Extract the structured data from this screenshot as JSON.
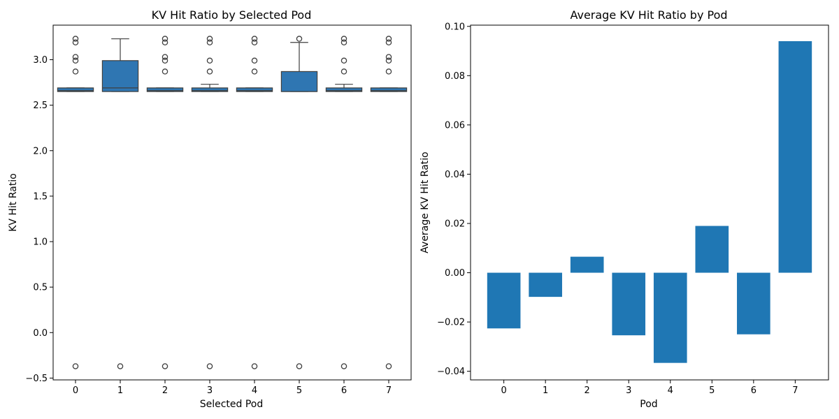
{
  "chart_data": [
    {
      "type": "box",
      "title": "KV Hit Ratio by Selected Pod",
      "xlabel": "Selected Pod",
      "ylabel": "KV Hit Ratio",
      "categories": [
        "0",
        "1",
        "2",
        "3",
        "4",
        "5",
        "6",
        "7"
      ],
      "ylim": [
        -0.52,
        3.38
      ],
      "yticks": [
        -0.5,
        0.0,
        0.5,
        1.0,
        1.5,
        2.0,
        2.5,
        3.0
      ],
      "ytick_labels": [
        "−0.5",
        "0.0",
        "0.5",
        "1.0",
        "1.5",
        "2.0",
        "2.5",
        "3.0"
      ],
      "color": "#2f76b2",
      "boxes": [
        {
          "q1": 2.65,
          "median": 2.66,
          "q3": 2.69,
          "whisker_low": 2.65,
          "whisker_high": 2.69,
          "outliers": [
            3.23,
            3.19,
            3.03,
            2.99,
            2.87,
            -0.37
          ]
        },
        {
          "q1": 2.65,
          "median": 2.69,
          "q3": 2.99,
          "whisker_low": 2.65,
          "whisker_high": 3.23,
          "outliers": [
            -0.37
          ]
        },
        {
          "q1": 2.65,
          "median": 2.66,
          "q3": 2.69,
          "whisker_low": 2.65,
          "whisker_high": 2.69,
          "outliers": [
            3.23,
            3.19,
            3.03,
            2.99,
            2.87,
            -0.37
          ]
        },
        {
          "q1": 2.65,
          "median": 2.66,
          "q3": 2.69,
          "whisker_low": 2.65,
          "whisker_high": 2.73,
          "outliers": [
            3.23,
            3.19,
            2.99,
            2.87,
            -0.37
          ]
        },
        {
          "q1": 2.65,
          "median": 2.66,
          "q3": 2.69,
          "whisker_low": 2.65,
          "whisker_high": 2.69,
          "outliers": [
            3.23,
            3.19,
            2.99,
            2.87,
            -0.37
          ]
        },
        {
          "q1": 2.65,
          "median": 2.65,
          "q3": 2.87,
          "whisker_low": 2.65,
          "whisker_high": 3.19,
          "outliers": [
            3.23,
            -0.37
          ]
        },
        {
          "q1": 2.65,
          "median": 2.66,
          "q3": 2.69,
          "whisker_low": 2.65,
          "whisker_high": 2.73,
          "outliers": [
            3.23,
            3.19,
            2.99,
            2.87,
            -0.37
          ]
        },
        {
          "q1": 2.65,
          "median": 2.66,
          "q3": 2.69,
          "whisker_low": 2.65,
          "whisker_high": 2.69,
          "outliers": [
            3.23,
            3.19,
            3.03,
            2.99,
            2.87,
            -0.37
          ]
        }
      ]
    },
    {
      "type": "bar",
      "title": "Average KV Hit Ratio by Pod",
      "xlabel": "Pod",
      "ylabel": "Average KV Hit Ratio",
      "categories": [
        "0",
        "1",
        "2",
        "3",
        "4",
        "5",
        "6",
        "7"
      ],
      "values": [
        -0.0226,
        -0.0098,
        0.0065,
        -0.0254,
        -0.0366,
        0.019,
        -0.025,
        0.094
      ],
      "ylim": [
        -0.0435,
        0.1005
      ],
      "yticks": [
        -0.04,
        -0.02,
        0.0,
        0.02,
        0.04,
        0.06,
        0.08,
        0.1
      ],
      "ytick_labels": [
        "−0.04",
        "−0.02",
        "0.00",
        "0.02",
        "0.04",
        "0.06",
        "0.08",
        "0.10"
      ],
      "color": "#1f77b4"
    }
  ]
}
